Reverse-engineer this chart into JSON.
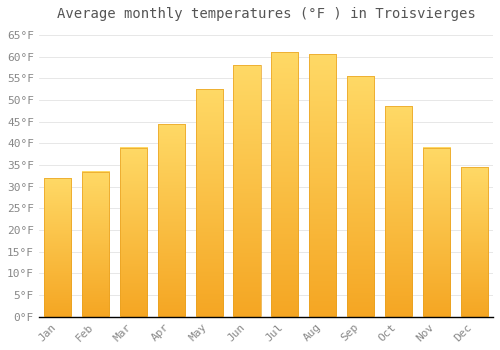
{
  "title": "Average monthly temperatures (°F ) in Troisvierges",
  "months": [
    "Jan",
    "Feb",
    "Mar",
    "Apr",
    "May",
    "Jun",
    "Jul",
    "Aug",
    "Sep",
    "Oct",
    "Nov",
    "Dec"
  ],
  "values": [
    32,
    33.5,
    39,
    44.5,
    52.5,
    58,
    61,
    60.5,
    55.5,
    48.5,
    39,
    34.5
  ],
  "bar_color_bottom": "#F5A623",
  "bar_color_top": "#FFD966",
  "bar_edge_color": "#E8A020",
  "background_color": "#FFFFFF",
  "grid_color": "#DDDDDD",
  "ylim": [
    0,
    67
  ],
  "yticks": [
    0,
    5,
    10,
    15,
    20,
    25,
    30,
    35,
    40,
    45,
    50,
    55,
    60,
    65
  ],
  "title_fontsize": 10,
  "tick_fontsize": 8,
  "tick_color": "#888888",
  "title_color": "#555555"
}
